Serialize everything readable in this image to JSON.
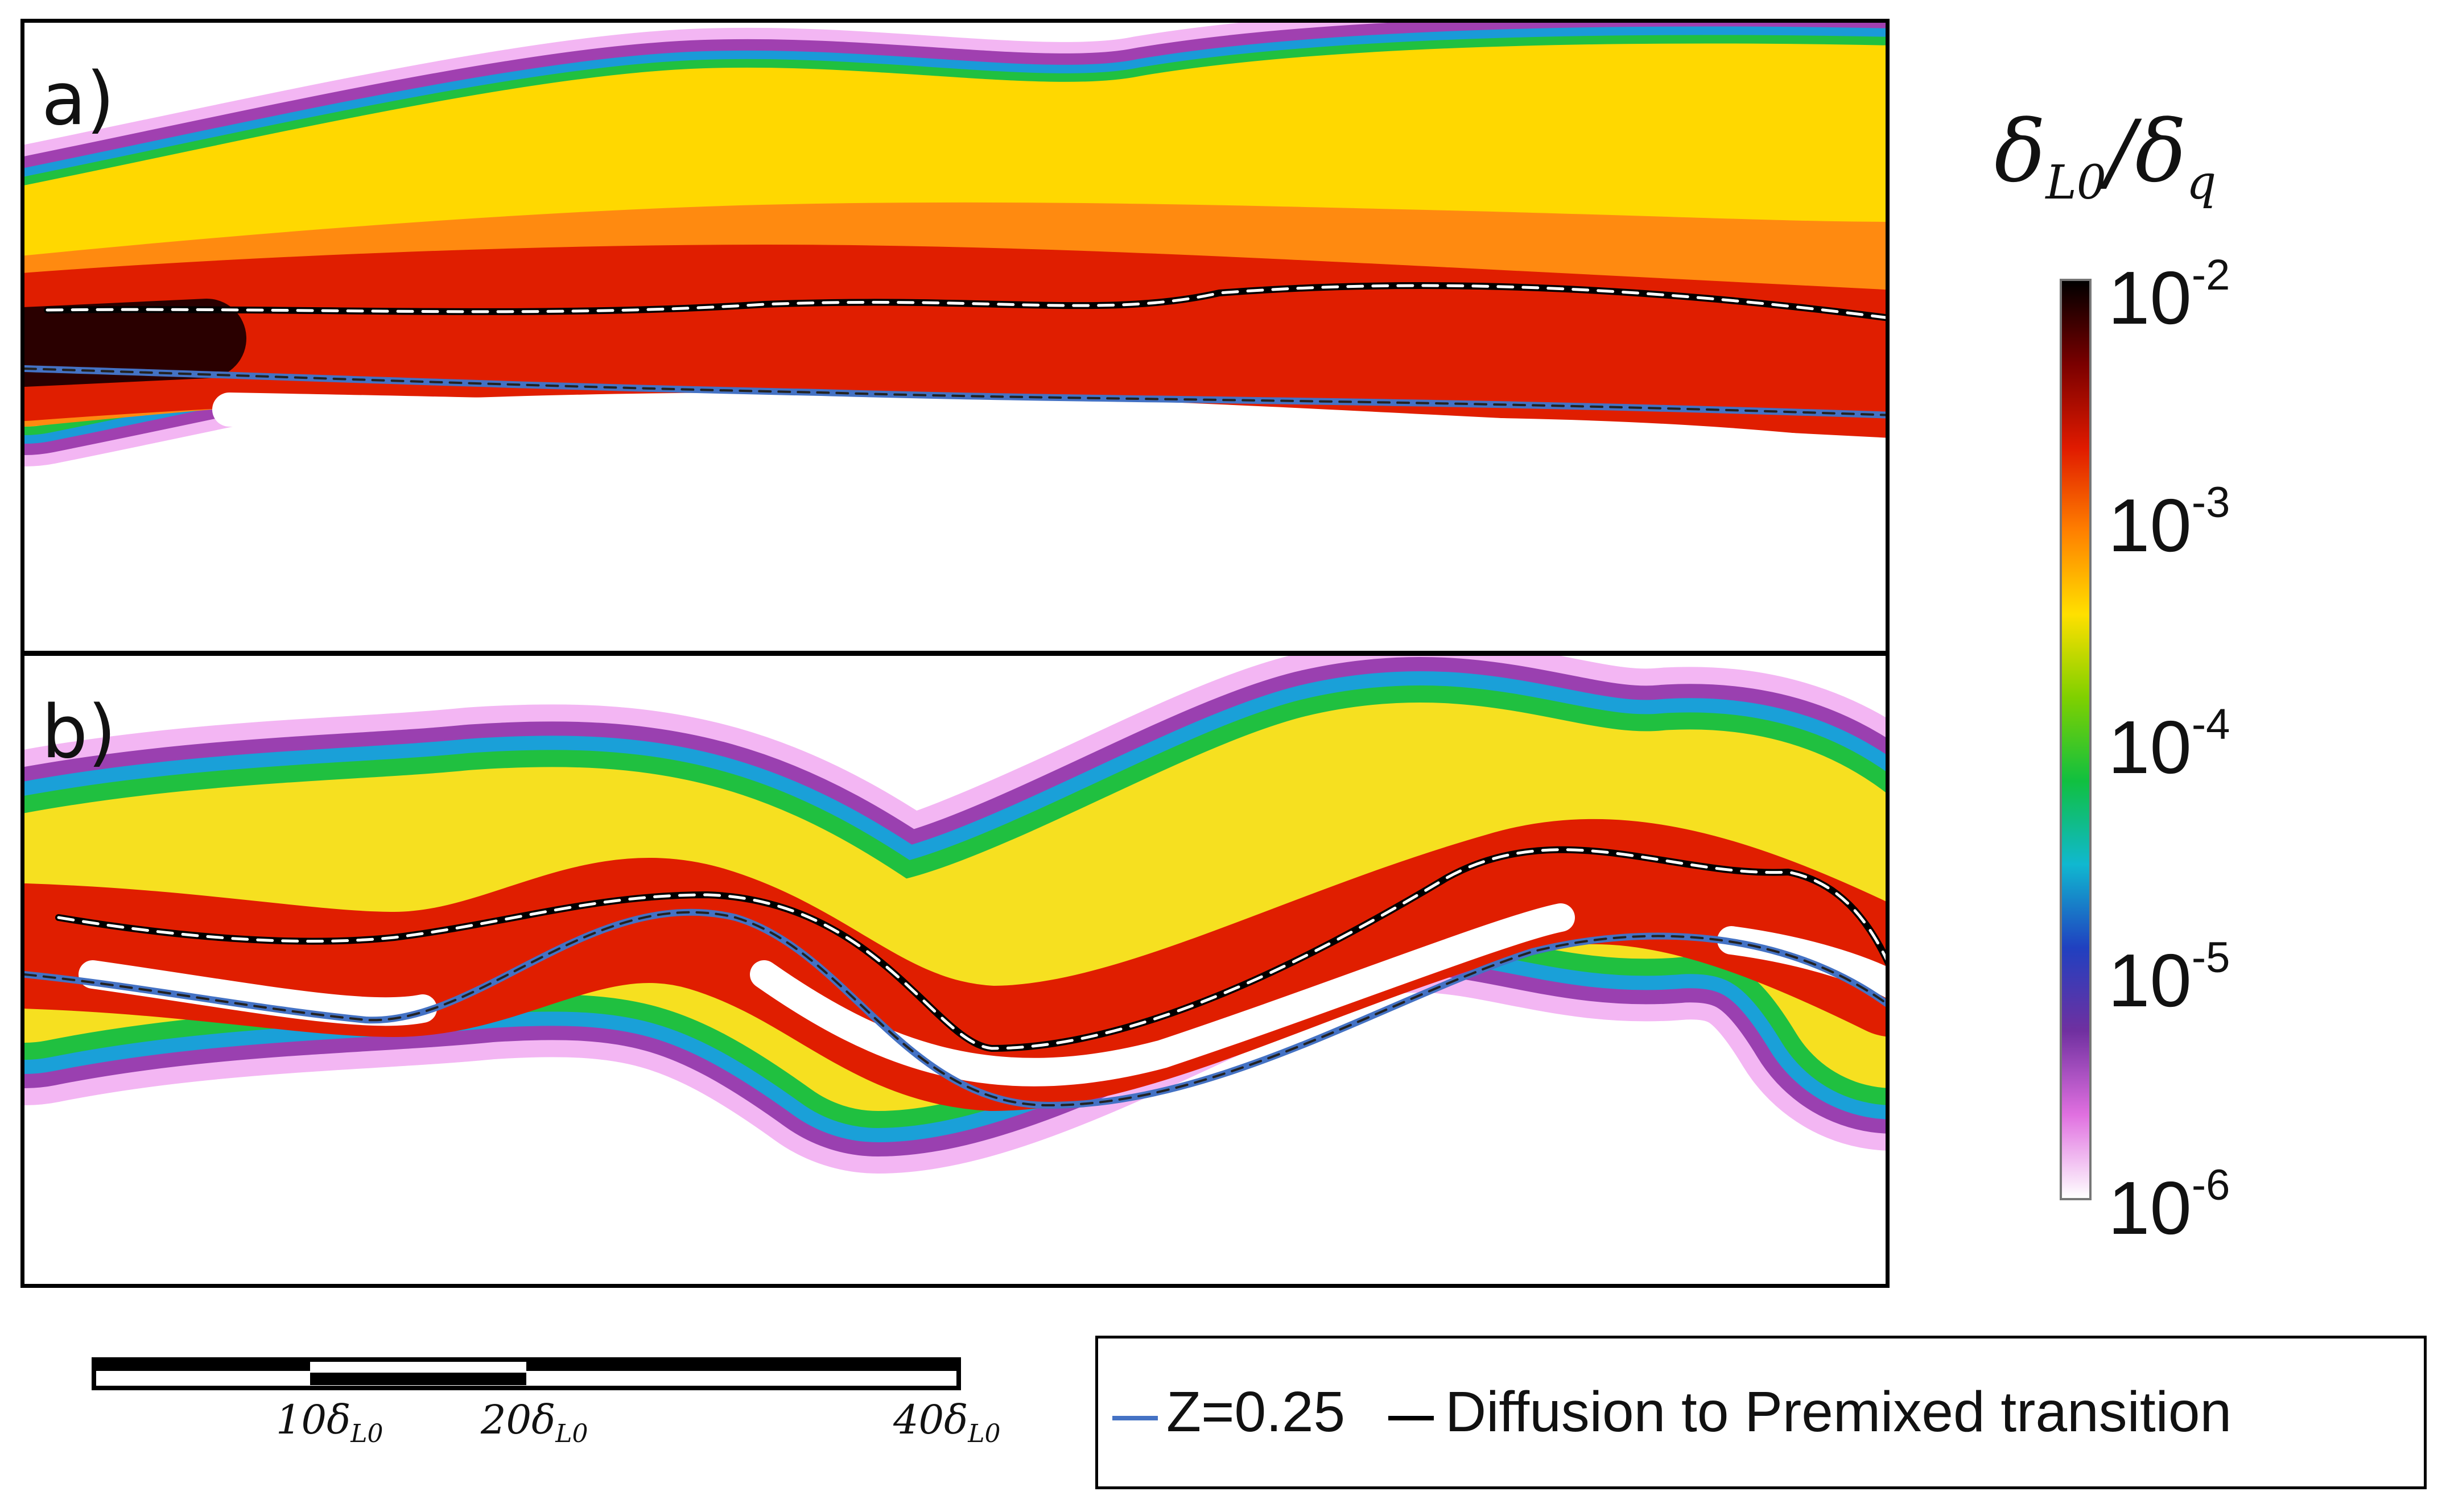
{
  "chart_data": {
    "type": "heatmap",
    "quantity": "δL0/δq",
    "colorbar": {
      "title_main": "δ",
      "title_sub1": "L0",
      "title_slash": "/δ",
      "title_sub2": "q",
      "scale": "log",
      "range": [
        1e-06,
        0.01
      ],
      "ticks": [
        {
          "base": "10",
          "exp": "-2",
          "value": 0.01
        },
        {
          "base": "10",
          "exp": "-3",
          "value": 0.001
        },
        {
          "base": "10",
          "exp": "-4",
          "value": 0.0001
        },
        {
          "base": "10",
          "exp": "-5",
          "value": 1e-05
        },
        {
          "base": "10",
          "exp": "-6",
          "value": 1e-06
        }
      ],
      "colormap": [
        "#000000",
        "#7a0000",
        "#e01a00",
        "#ff8000",
        "#ffe000",
        "#7fd000",
        "#10c040",
        "#10b8d0",
        "#2040c0",
        "#7030a0",
        "#e070e0",
        "#ffffff"
      ]
    },
    "panels": [
      {
        "label": "a)"
      },
      {
        "label": "b)"
      }
    ],
    "scale_bar": {
      "ticks": [
        {
          "value": "10",
          "sym": "δ",
          "sub": "L0"
        },
        {
          "value": "20",
          "sym": "δ",
          "sub": "L0"
        },
        {
          "value": "40",
          "sym": "δ",
          "sub": "L0"
        }
      ]
    },
    "legend": [
      {
        "label": "Z=0.25",
        "color": "#4472c4"
      },
      {
        "label": "Diffusion to Premixed transition",
        "color": "#000000"
      }
    ]
  }
}
